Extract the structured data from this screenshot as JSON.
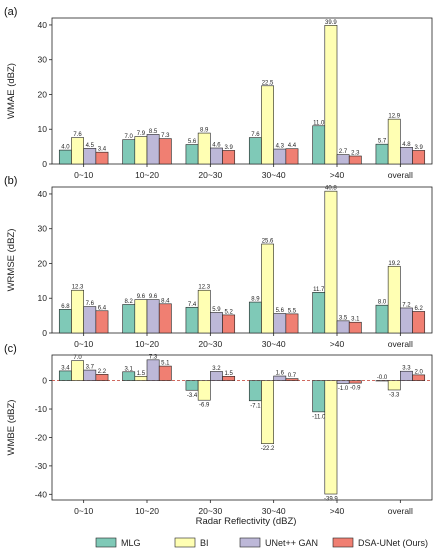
{
  "colors": {
    "MLG": "#7fc9b7",
    "BI": "#ffffb3",
    "UNet++ GAN": "#bdb8d8",
    "DSA-UNet (Ours)": "#f07f72"
  },
  "xlabel": "Radar Reflectivity (dBZ)",
  "legend": {
    "placement": "bottom",
    "items": [
      "MLG",
      "BI",
      "UNet++ GAN",
      "DSA-UNet (Ours)"
    ]
  },
  "chart_data": [
    {
      "type": "bar",
      "panel_label": "(a)",
      "ylabel": "WMAE (dBZ)",
      "ylim": [
        0,
        42
      ],
      "yticks": [
        0,
        10,
        20,
        30,
        40
      ],
      "categories": [
        "0~10",
        "10~20",
        "20~30",
        "30~40",
        ">40",
        "overall"
      ],
      "series": [
        {
          "name": "MLG",
          "values": [
            4.0,
            7.0,
            5.6,
            7.6,
            11.0,
            5.7
          ],
          "labels": [
            "4.0",
            "7.0",
            "5.6",
            "7.6",
            "11.0",
            "5.7"
          ]
        },
        {
          "name": "BI",
          "values": [
            7.6,
            7.9,
            8.9,
            22.5,
            39.9,
            12.9
          ],
          "labels": [
            "7.6",
            "7.9",
            "8.9",
            "22.5",
            "39.9",
            "12.9"
          ]
        },
        {
          "name": "UNet++ GAN",
          "values": [
            4.5,
            8.5,
            4.6,
            4.3,
            2.7,
            4.8
          ],
          "labels": [
            "4.5",
            "8.5",
            "4.6",
            "4.3",
            "2.7",
            "4.8"
          ]
        },
        {
          "name": "DSA-UNet (Ours)",
          "values": [
            3.4,
            7.3,
            3.9,
            4.4,
            2.3,
            3.9
          ],
          "labels": [
            "3.4",
            "7.3",
            "3.9",
            "4.4",
            "2.3",
            "3.9"
          ]
        }
      ]
    },
    {
      "type": "bar",
      "panel_label": "(b)",
      "ylabel": "WRMSE (dBZ)",
      "ylim": [
        0,
        42
      ],
      "yticks": [
        0,
        10,
        20,
        30,
        40
      ],
      "categories": [
        "0~10",
        "10~20",
        "20~30",
        "30~40",
        ">40",
        "overall"
      ],
      "series": [
        {
          "name": "MLG",
          "values": [
            6.8,
            8.2,
            7.4,
            8.9,
            11.7,
            8.0
          ],
          "labels": [
            "6.8",
            "8.2",
            "7.4",
            "8.9",
            "11.7",
            "8.0"
          ]
        },
        {
          "name": "BI",
          "values": [
            12.3,
            9.6,
            12.3,
            25.6,
            40.8,
            19.2
          ],
          "labels": [
            "12.3",
            "9.6",
            "12.3",
            "25.6",
            "40.8",
            "19.2"
          ]
        },
        {
          "name": "UNet++ GAN",
          "values": [
            7.6,
            9.6,
            5.9,
            5.6,
            3.5,
            7.2
          ],
          "labels": [
            "7.6",
            "9.6",
            "5.9",
            "5.6",
            "3.5",
            "7.2"
          ]
        },
        {
          "name": "DSA-UNet (Ours)",
          "values": [
            6.4,
            8.4,
            5.2,
            5.5,
            3.1,
            6.2
          ],
          "labels": [
            "6.4",
            "8.4",
            "5.2",
            "5.5",
            "3.1",
            "6.2"
          ]
        }
      ]
    },
    {
      "type": "bar",
      "panel_label": "(c)",
      "ylabel": "WMBE (dBZ)",
      "ylim": [
        -42,
        9
      ],
      "yticks": [
        -40,
        -30,
        -20,
        -10,
        0
      ],
      "zero_line": "dashed",
      "categories": [
        "0~10",
        "10~20",
        "20~30",
        "30~40",
        ">40",
        "overall"
      ],
      "series": [
        {
          "name": "MLG",
          "values": [
            3.4,
            3.1,
            -3.4,
            -7.1,
            -11.0,
            -0.0
          ],
          "labels": [
            "3.4",
            "3.1",
            "-3.4",
            "-7.1",
            "-11.0",
            "-0.0"
          ]
        },
        {
          "name": "BI",
          "values": [
            7.0,
            1.5,
            -6.9,
            -22.2,
            -39.9,
            -3.3
          ],
          "labels": [
            "7.0",
            "1.5",
            "-6.9",
            "-22.2",
            "-39.9",
            "-3.3"
          ]
        },
        {
          "name": "UNet++ GAN",
          "values": [
            3.7,
            7.3,
            3.2,
            1.6,
            -1.0,
            3.3
          ],
          "labels": [
            "3.7",
            "7.3",
            "3.2",
            "1.6",
            "-1.0",
            "3.3"
          ]
        },
        {
          "name": "DSA-UNet (Ours)",
          "values": [
            2.2,
            5.1,
            1.5,
            0.7,
            -0.9,
            2.0
          ],
          "labels": [
            "2.2",
            "5.1",
            "1.5",
            "0.7",
            "-0.9",
            "2.0"
          ]
        }
      ]
    }
  ]
}
